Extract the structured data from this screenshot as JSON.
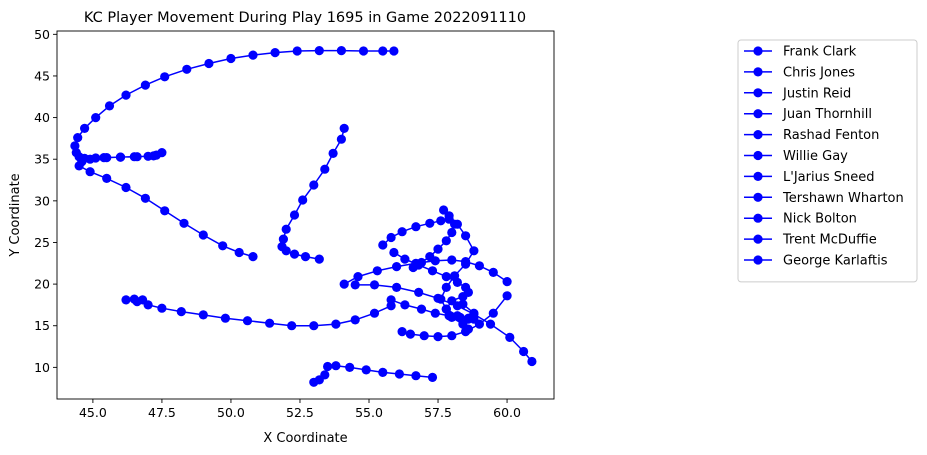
{
  "chart_data": {
    "type": "line",
    "title": "KC Player Movement During Play 1695 in Game 2022091110",
    "xlabel": "X Coordinate",
    "ylabel": "Y Coordinate",
    "xlim": [
      43.7,
      61.7
    ],
    "ylim": [
      6.2,
      50.4
    ],
    "xticks": [
      45.0,
      47.5,
      50.0,
      52.5,
      55.0,
      57.5,
      60.0
    ],
    "xtick_labels": [
      "45.0",
      "47.5",
      "50.0",
      "52.5",
      "55.0",
      "57.5",
      "60.0"
    ],
    "yticks": [
      10,
      15,
      20,
      25,
      30,
      35,
      40,
      45,
      50
    ],
    "ytick_labels": [
      "10",
      "15",
      "20",
      "25",
      "30",
      "35",
      "40",
      "45",
      "50"
    ],
    "grid": false,
    "legend_position": "outside-right",
    "color": "#0000ff",
    "marker": "circle",
    "series": [
      {
        "name": "Frank Clark",
        "x": [
          55.9,
          55.5,
          54.8,
          54.0,
          53.2,
          52.4,
          51.6,
          50.8,
          50.0,
          49.2,
          48.4,
          47.6,
          46.9,
          46.2,
          45.6,
          45.1,
          44.7,
          44.45,
          44.35,
          44.4,
          44.5,
          44.7,
          45.1,
          45.5,
          46.0,
          46.5,
          47.0,
          47.3,
          47.5,
          47.2,
          46.6,
          46.0,
          45.4,
          44.9,
          44.6,
          44.5,
          44.9,
          45.5,
          46.2,
          46.9,
          47.6,
          48.3,
          49.0,
          49.7,
          50.3,
          50.8
        ],
        "y": [
          48.0,
          48.0,
          48.0,
          48.05,
          48.05,
          48.0,
          47.8,
          47.5,
          47.1,
          46.5,
          45.8,
          44.9,
          43.9,
          42.7,
          41.4,
          40.0,
          38.7,
          37.6,
          36.6,
          35.8,
          35.3,
          35.1,
          35.15,
          35.2,
          35.25,
          35.3,
          35.35,
          35.5,
          35.8,
          35.4,
          35.3,
          35.25,
          35.2,
          35.0,
          34.7,
          34.2,
          33.5,
          32.7,
          31.6,
          30.3,
          28.8,
          27.3,
          25.9,
          24.6,
          23.8,
          23.3
        ]
      },
      {
        "name": "Chris Jones",
        "x": [
          54.1,
          54.0,
          53.7,
          53.4,
          53.0,
          52.6,
          52.3,
          52.0,
          51.9,
          51.85,
          52.0,
          52.3,
          52.7,
          53.2
        ],
        "y": [
          38.7,
          37.4,
          35.7,
          33.8,
          31.9,
          30.1,
          28.3,
          26.6,
          25.4,
          24.5,
          24.0,
          23.6,
          23.3,
          23.0
        ]
      },
      {
        "name": "Justin Reid",
        "x": [
          56.2,
          56.5,
          57.0,
          57.5,
          58.0,
          58.5,
          59.0,
          59.5,
          60.0
        ],
        "y": [
          14.3,
          14.0,
          13.8,
          13.7,
          13.8,
          14.3,
          15.2,
          16.5,
          18.6
        ]
      },
      {
        "name": "Juan Thornhill",
        "x": [
          46.2,
          46.5,
          46.8,
          46.6,
          47.0,
          47.5,
          48.2,
          49.0,
          49.8,
          50.6,
          51.4,
          52.2,
          53.0,
          53.8,
          54.5,
          55.2,
          55.8
        ],
        "y": [
          18.1,
          18.2,
          18.1,
          17.9,
          17.5,
          17.1,
          16.7,
          16.3,
          15.9,
          15.6,
          15.3,
          15.0,
          15.0,
          15.2,
          15.7,
          16.5,
          17.4
        ]
      },
      {
        "name": "Rashad Fenton",
        "x": [
          53.0,
          53.2,
          53.4,
          53.5,
          53.8,
          54.3,
          54.9,
          55.5,
          56.1,
          56.7,
          57.3
        ],
        "y": [
          8.2,
          8.5,
          9.1,
          10.1,
          10.2,
          10.0,
          9.7,
          9.4,
          9.2,
          9.0,
          8.8
        ]
      },
      {
        "name": "Willie Gay",
        "x": [
          54.1,
          54.6,
          55.3,
          56.0,
          56.7,
          57.4,
          58.0,
          58.5,
          59.0,
          59.5,
          60.0
        ],
        "y": [
          20.0,
          20.9,
          21.6,
          22.1,
          22.5,
          22.8,
          22.9,
          22.7,
          22.2,
          21.4,
          20.3
        ]
      },
      {
        "name": "L'Jarius Sneed",
        "x": [
          54.5,
          55.2,
          56.0,
          56.8,
          57.5,
          58.2,
          58.8,
          59.4,
          60.1,
          60.6,
          60.9
        ],
        "y": [
          19.9,
          19.9,
          19.6,
          19.0,
          18.3,
          17.4,
          16.4,
          15.2,
          13.6,
          11.9,
          10.7
        ]
      },
      {
        "name": "Tershawn Wharton",
        "x": [
          55.8,
          56.3,
          56.9,
          57.4,
          57.9,
          58.3,
          58.6,
          58.8
        ],
        "y": [
          18.1,
          17.5,
          17.0,
          16.5,
          16.2,
          16.0,
          15.9,
          15.8
        ]
      },
      {
        "name": "Nick Bolton",
        "x": [
          55.5,
          55.8,
          56.2,
          56.7,
          57.2,
          57.6,
          57.9,
          58.1,
          58.0,
          57.8,
          57.5,
          57.2,
          56.9,
          56.6
        ],
        "y": [
          24.7,
          25.6,
          26.3,
          26.9,
          27.3,
          27.6,
          27.8,
          27.2,
          26.2,
          25.2,
          24.2,
          23.3,
          22.6,
          22.0
        ]
      },
      {
        "name": "Trent McDuffie",
        "x": [
          57.7,
          57.9,
          58.2,
          58.5,
          58.8,
          58.5,
          58.1,
          57.8,
          57.6,
          57.8,
          58.2,
          58.6,
          58.8,
          58.4
        ],
        "y": [
          28.9,
          28.2,
          27.2,
          25.8,
          24.0,
          22.4,
          21.0,
          19.6,
          18.2,
          17.0,
          16.2,
          15.8,
          16.5,
          17.6
        ]
      },
      {
        "name": "George Karlaftis",
        "x": [
          55.9,
          56.3,
          56.8,
          57.3,
          57.8,
          58.2,
          58.5,
          58.6,
          58.4,
          58.0,
          57.8,
          58.0,
          58.4,
          58.6
        ],
        "y": [
          23.8,
          23.0,
          22.3,
          21.6,
          20.9,
          20.2,
          19.6,
          19.0,
          18.5,
          18.0,
          17.0,
          16.0,
          15.2,
          14.6
        ]
      }
    ]
  }
}
